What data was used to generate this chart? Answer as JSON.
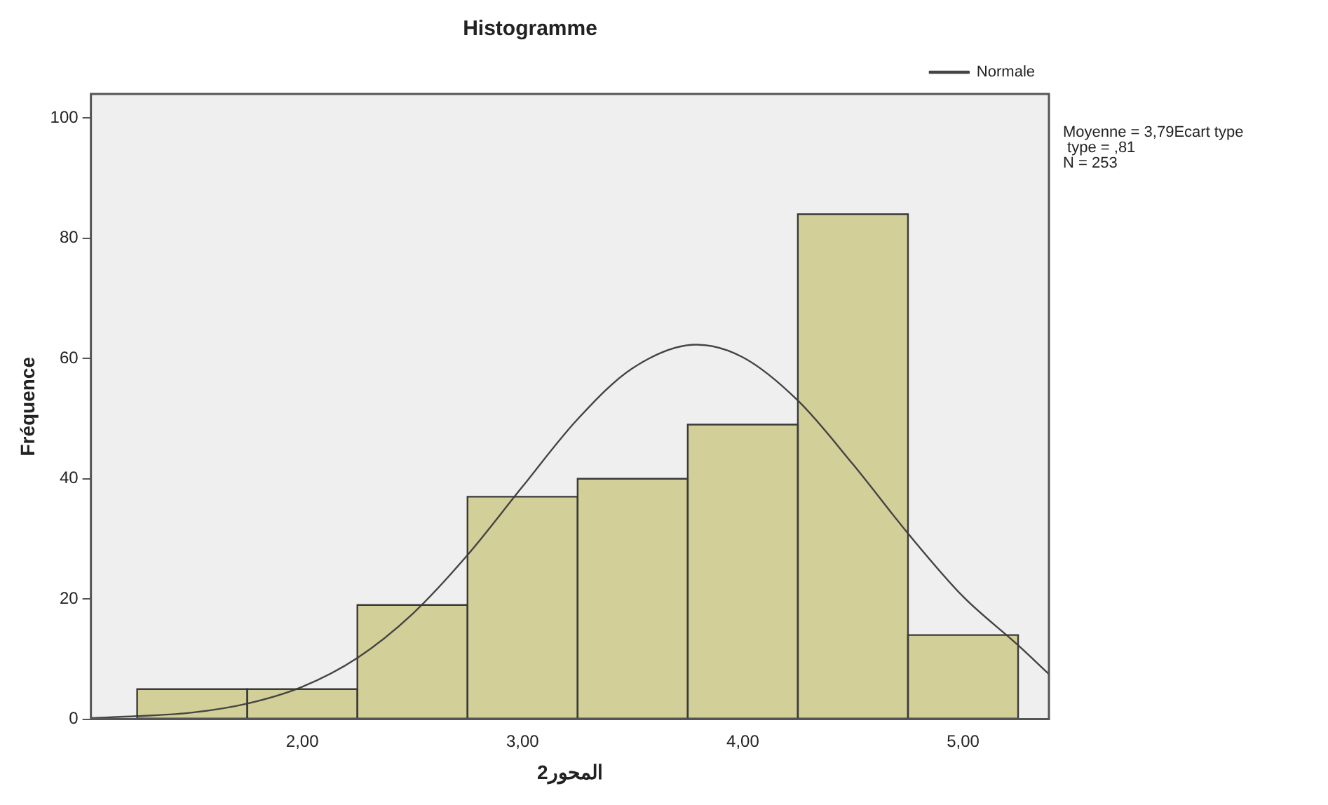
{
  "chart_data": {
    "type": "histogram",
    "title": "Histogramme",
    "xlabel": "المحور2",
    "ylabel": "Fréquence",
    "bins": [
      1.25,
      1.75,
      2.25,
      2.75,
      3.25,
      3.75,
      4.25,
      4.75,
      5.25
    ],
    "series": [
      {
        "color": "#d3cf98",
        "values": [
          5,
          5,
          19,
          37,
          40,
          49,
          84,
          14
        ]
      },
      {
        "type": "line",
        "name": "Normale",
        "color": "#444444",
        "x": [
          1.04,
          1.25,
          1.5,
          1.75,
          2.0,
          2.25,
          2.5,
          2.75,
          3.0,
          3.25,
          3.5,
          3.79,
          4.0,
          4.25,
          4.5,
          4.75,
          5.0,
          5.25,
          5.39
        ],
        "values": [
          0.2,
          0.5,
          1.1,
          2.6,
          5.4,
          10.2,
          17.5,
          27.3,
          38.7,
          49.9,
          58.4,
          62.3,
          60.2,
          53.0,
          42.4,
          30.9,
          20.4,
          12.3,
          7.5
        ]
      }
    ],
    "xlim": [
      1.04,
      5.39
    ],
    "xticks": [
      {
        "value": 2,
        "label": "2,00"
      },
      {
        "value": 3,
        "label": "3,00"
      },
      {
        "value": 4,
        "label": "4,00"
      },
      {
        "value": 5,
        "label": "5,00"
      }
    ],
    "ylim": [
      0,
      104
    ],
    "yticks": [
      0,
      20,
      40,
      60,
      80,
      100
    ],
    "grid": false,
    "legend": "top right",
    "marker": "none",
    "line_style": "solid",
    "annotations": [
      "Moyenne = 3,79Ecart type",
      " type = ,81",
      "N = 253"
    ]
  }
}
